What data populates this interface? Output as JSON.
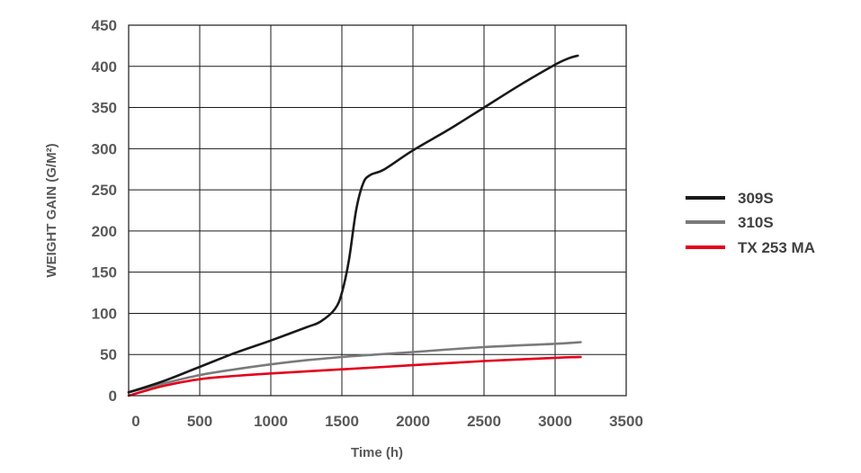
{
  "chart_data": {
    "type": "line",
    "title": "",
    "xlabel": "Time (h)",
    "ylabel": "WEIGHT GAIN (G/M²)",
    "xlim": [
      0,
      3500
    ],
    "ylim": [
      0,
      450
    ],
    "x_ticks": [
      "0",
      "500",
      "1000",
      "1500",
      "2000",
      "2500",
      "3000",
      "3500"
    ],
    "y_ticks": [
      "0",
      "50",
      "100",
      "150",
      "200",
      "250",
      "300",
      "350",
      "400",
      "450"
    ],
    "grid": true,
    "legend_position": "right",
    "series": [
      {
        "name": "309S",
        "color": "#1a1a1a",
        "x": [
          0,
          250,
          500,
          750,
          1000,
          1250,
          1350,
          1450,
          1500,
          1550,
          1600,
          1650,
          1700,
          1800,
          2000,
          2250,
          2500,
          2750,
          3000,
          3100,
          3160
        ],
        "y": [
          4,
          18,
          35,
          52,
          67,
          83,
          90,
          105,
          125,
          165,
          225,
          258,
          268,
          275,
          298,
          323,
          350,
          377,
          402,
          410,
          413
        ]
      },
      {
        "name": "310S",
        "color": "#7a7a7a",
        "x": [
          0,
          250,
          500,
          750,
          1000,
          1250,
          1500,
          1750,
          2000,
          2500,
          3000,
          3180
        ],
        "y": [
          4,
          15,
          25,
          32,
          38,
          43,
          47,
          50,
          53,
          59,
          63,
          65
        ]
      },
      {
        "name": "TX 253 MA",
        "color": "#e3001b",
        "x": [
          0,
          100,
          250,
          500,
          750,
          1000,
          1500,
          2000,
          2500,
          3000,
          3180
        ],
        "y": [
          0,
          5,
          12,
          20,
          24,
          27,
          32,
          37,
          42,
          46,
          47
        ]
      }
    ]
  }
}
